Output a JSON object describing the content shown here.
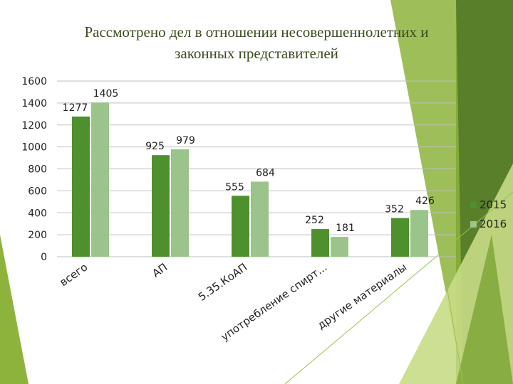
{
  "slide": {
    "title_line1": "Рассмотрено дел в отношении несовершеннолетних и",
    "title_line2": "законных представителей",
    "title_color": "#3b4a1f"
  },
  "colors": {
    "series_2015": "#4e8f2e",
    "series_2016": "#9bc48a",
    "deco_dark": "#5a7f2a",
    "deco_mid": "#8db33d",
    "deco_light": "#c8dc86"
  },
  "chart_data": {
    "type": "bar",
    "categories": [
      "всего",
      "АП",
      "5.35.КоАП",
      "употребление спирт...",
      "другие материалы"
    ],
    "series": [
      {
        "name": "2015",
        "values": [
          1277,
          925,
          555,
          252,
          352
        ],
        "color": "#4e8f2e"
      },
      {
        "name": "2016",
        "values": [
          1405,
          979,
          684,
          181,
          426
        ],
        "color": "#9bc48a"
      }
    ],
    "ylim": [
      0,
      1600
    ],
    "yticks": [
      0,
      200,
      400,
      600,
      800,
      1000,
      1200,
      1400,
      1600
    ],
    "grid": true,
    "legend": "right",
    "data_labels": true
  }
}
